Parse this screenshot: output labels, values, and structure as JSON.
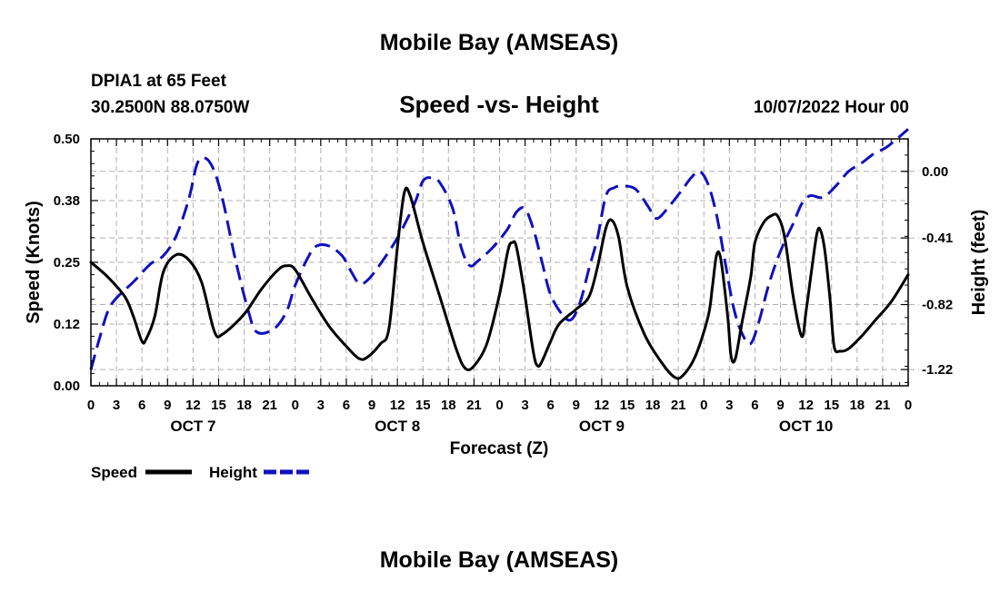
{
  "chart_data": {
    "type": "line",
    "title": "Mobile Bay (AMSEAS)",
    "footer_title": "Mobile Bay (AMSEAS)",
    "station": "DPIA1 at 65 Feet",
    "coords": "30.2500N  88.0750W",
    "subtitle": "Speed -vs- Height",
    "date": "10/07/2022 Hour 00",
    "xlabel": "Forecast (Z)",
    "ylabel_left": "Speed (Knots)",
    "ylabel_right": "Height (feet)",
    "xlim": [
      0,
      96
    ],
    "ylim_left": [
      0,
      0.5
    ],
    "ylim_right": [
      -1.32,
      0.2
    ],
    "grid": true,
    "x_ticks": [
      0,
      3,
      6,
      9,
      12,
      15,
      18,
      21,
      24,
      27,
      30,
      33,
      36,
      39,
      42,
      45,
      48,
      51,
      54,
      57,
      60,
      63,
      66,
      69,
      72,
      75,
      78,
      81,
      84,
      87,
      90,
      93,
      96
    ],
    "x_tick_labels": [
      "0",
      "3",
      "6",
      "9",
      "12",
      "15",
      "18",
      "21",
      "0",
      "3",
      "6",
      "9",
      "12",
      "15",
      "18",
      "21",
      "0",
      "3",
      "6",
      "9",
      "12",
      "15",
      "18",
      "21",
      "0",
      "3",
      "6",
      "9",
      "12",
      "15",
      "18",
      "21",
      "0"
    ],
    "day_labels": [
      {
        "x": 12,
        "label": "OCT 7"
      },
      {
        "x": 36,
        "label": "OCT 8"
      },
      {
        "x": 60,
        "label": "OCT 9"
      },
      {
        "x": 84,
        "label": "OCT 10"
      }
    ],
    "y_left_ticks": [
      0,
      0.125,
      0.25,
      0.375,
      0.5
    ],
    "y_left_tick_labels": [
      "0.00",
      "0.12",
      "0.25",
      "0.38",
      "0.50"
    ],
    "y_right_ticks": [
      0.0,
      -0.41,
      -0.82,
      -1.22
    ],
    "y_right_tick_labels": [
      "0.00",
      "-0.41",
      "-0.82",
      "-1.22"
    ],
    "legend": [
      {
        "label": "Speed",
        "color": "#000000",
        "style": "solid"
      },
      {
        "label": "Height",
        "color": "#1010c0",
        "style": "dashed"
      }
    ],
    "series": [
      {
        "name": "Speed",
        "axis": "left",
        "color": "#000000",
        "points": [
          [
            0,
            0.25
          ],
          [
            2,
            0.22
          ],
          [
            4,
            0.18
          ],
          [
            5,
            0.14
          ],
          [
            6,
            0.09
          ],
          [
            6.5,
            0.095
          ],
          [
            7.5,
            0.14
          ],
          [
            8.5,
            0.23
          ],
          [
            10,
            0.265
          ],
          [
            11.5,
            0.255
          ],
          [
            13,
            0.21
          ],
          [
            14.5,
            0.11
          ],
          [
            15.5,
            0.105
          ],
          [
            18,
            0.145
          ],
          [
            20,
            0.195
          ],
          [
            22,
            0.235
          ],
          [
            23,
            0.243
          ],
          [
            24,
            0.235
          ],
          [
            26,
            0.175
          ],
          [
            28,
            0.12
          ],
          [
            30,
            0.08
          ],
          [
            31.5,
            0.055
          ],
          [
            32.5,
            0.058
          ],
          [
            34,
            0.085
          ],
          [
            35,
            0.115
          ],
          [
            36,
            0.28
          ],
          [
            36.8,
            0.39
          ],
          [
            37.5,
            0.385
          ],
          [
            39,
            0.29
          ],
          [
            41,
            0.18
          ],
          [
            43,
            0.07
          ],
          [
            44,
            0.035
          ],
          [
            45,
            0.04
          ],
          [
            46.5,
            0.085
          ],
          [
            48,
            0.185
          ],
          [
            49,
            0.275
          ],
          [
            49.5,
            0.29
          ],
          [
            50,
            0.28
          ],
          [
            51,
            0.18
          ],
          [
            52,
            0.065
          ],
          [
            52.5,
            0.04
          ],
          [
            53,
            0.05
          ],
          [
            54,
            0.09
          ],
          [
            55,
            0.125
          ],
          [
            57,
            0.155
          ],
          [
            58.5,
            0.18
          ],
          [
            59.5,
            0.24
          ],
          [
            60.5,
            0.32
          ],
          [
            61.2,
            0.335
          ],
          [
            62,
            0.3
          ],
          [
            63,
            0.2
          ],
          [
            65,
            0.105
          ],
          [
            67,
            0.048
          ],
          [
            68.5,
            0.018
          ],
          [
            69.5,
            0.02
          ],
          [
            71,
            0.06
          ],
          [
            72.5,
            0.14
          ],
          [
            73,
            0.2
          ],
          [
            73.5,
            0.265
          ],
          [
            74,
            0.255
          ],
          [
            74.8,
            0.14
          ],
          [
            75.2,
            0.06
          ],
          [
            75.7,
            0.055
          ],
          [
            76.5,
            0.13
          ],
          [
            77.5,
            0.22
          ],
          [
            78,
            0.29
          ],
          [
            79,
            0.33
          ],
          [
            80,
            0.345
          ],
          [
            80.7,
            0.343
          ],
          [
            81.5,
            0.3
          ],
          [
            82.5,
            0.18
          ],
          [
            83.5,
            0.1
          ],
          [
            84,
            0.15
          ],
          [
            84.7,
            0.24
          ],
          [
            85.3,
            0.31
          ],
          [
            85.7,
            0.315
          ],
          [
            86.2,
            0.275
          ],
          [
            86.8,
            0.18
          ],
          [
            87.3,
            0.08
          ],
          [
            88,
            0.07
          ],
          [
            89,
            0.075
          ],
          [
            90.5,
            0.1
          ],
          [
            92,
            0.13
          ],
          [
            94,
            0.17
          ],
          [
            96,
            0.225
          ]
        ]
      },
      {
        "name": "Height",
        "axis": "right",
        "color": "#1010c0",
        "points": [
          [
            0,
            -1.22
          ],
          [
            1,
            -1.03
          ],
          [
            2,
            -0.86
          ],
          [
            3,
            -0.78
          ],
          [
            5,
            -0.68
          ],
          [
            7,
            -0.57
          ],
          [
            8.5,
            -0.52
          ],
          [
            10,
            -0.4
          ],
          [
            11.5,
            -0.17
          ],
          [
            12.5,
            0.05
          ],
          [
            13.5,
            0.08
          ],
          [
            14.5,
            0.0
          ],
          [
            15.5,
            -0.18
          ],
          [
            17,
            -0.55
          ],
          [
            18.5,
            -0.86
          ],
          [
            19.5,
            -0.99
          ],
          [
            21.5,
            -0.97
          ],
          [
            23,
            -0.86
          ],
          [
            24,
            -0.7
          ],
          [
            25.5,
            -0.53
          ],
          [
            26.5,
            -0.46
          ],
          [
            28,
            -0.46
          ],
          [
            29.5,
            -0.52
          ],
          [
            30.5,
            -0.61
          ],
          [
            31.5,
            -0.69
          ],
          [
            32.5,
            -0.67
          ],
          [
            34,
            -0.57
          ],
          [
            36,
            -0.41
          ],
          [
            38,
            -0.2
          ],
          [
            39,
            -0.06
          ],
          [
            40,
            -0.04
          ],
          [
            41,
            -0.07
          ],
          [
            42.5,
            -0.23
          ],
          [
            43.5,
            -0.47
          ],
          [
            44.5,
            -0.58
          ],
          [
            45.5,
            -0.55
          ],
          [
            47,
            -0.48
          ],
          [
            48,
            -0.42
          ],
          [
            49,
            -0.35
          ],
          [
            50,
            -0.25
          ],
          [
            51,
            -0.23
          ],
          [
            52,
            -0.36
          ],
          [
            53,
            -0.56
          ],
          [
            54,
            -0.76
          ],
          [
            55.5,
            -0.89
          ],
          [
            56.5,
            -0.91
          ],
          [
            57.5,
            -0.8
          ],
          [
            58.5,
            -0.6
          ],
          [
            59.5,
            -0.41
          ],
          [
            60.5,
            -0.15
          ],
          [
            61.5,
            -0.1
          ],
          [
            62.5,
            -0.09
          ],
          [
            64,
            -0.11
          ],
          [
            65.5,
            -0.22
          ],
          [
            66.5,
            -0.29
          ],
          [
            68,
            -0.21
          ],
          [
            69.5,
            -0.11
          ],
          [
            70.5,
            -0.04
          ],
          [
            71.5,
            0.0
          ],
          [
            72.5,
            -0.08
          ],
          [
            73.5,
            -0.27
          ],
          [
            74.5,
            -0.56
          ],
          [
            75.5,
            -0.84
          ],
          [
            76.5,
            -1.0
          ],
          [
            77.5,
            -1.06
          ],
          [
            78.5,
            -0.92
          ],
          [
            79.5,
            -0.72
          ],
          [
            80.5,
            -0.56
          ],
          [
            81.5,
            -0.43
          ],
          [
            82.5,
            -0.32
          ],
          [
            83.5,
            -0.2
          ],
          [
            84.5,
            -0.15
          ],
          [
            86,
            -0.16
          ],
          [
            87.5,
            -0.09
          ],
          [
            89,
            0.0
          ],
          [
            90.5,
            0.05
          ],
          [
            92,
            0.11
          ],
          [
            93.5,
            0.15
          ],
          [
            96,
            0.26
          ]
        ]
      }
    ]
  }
}
